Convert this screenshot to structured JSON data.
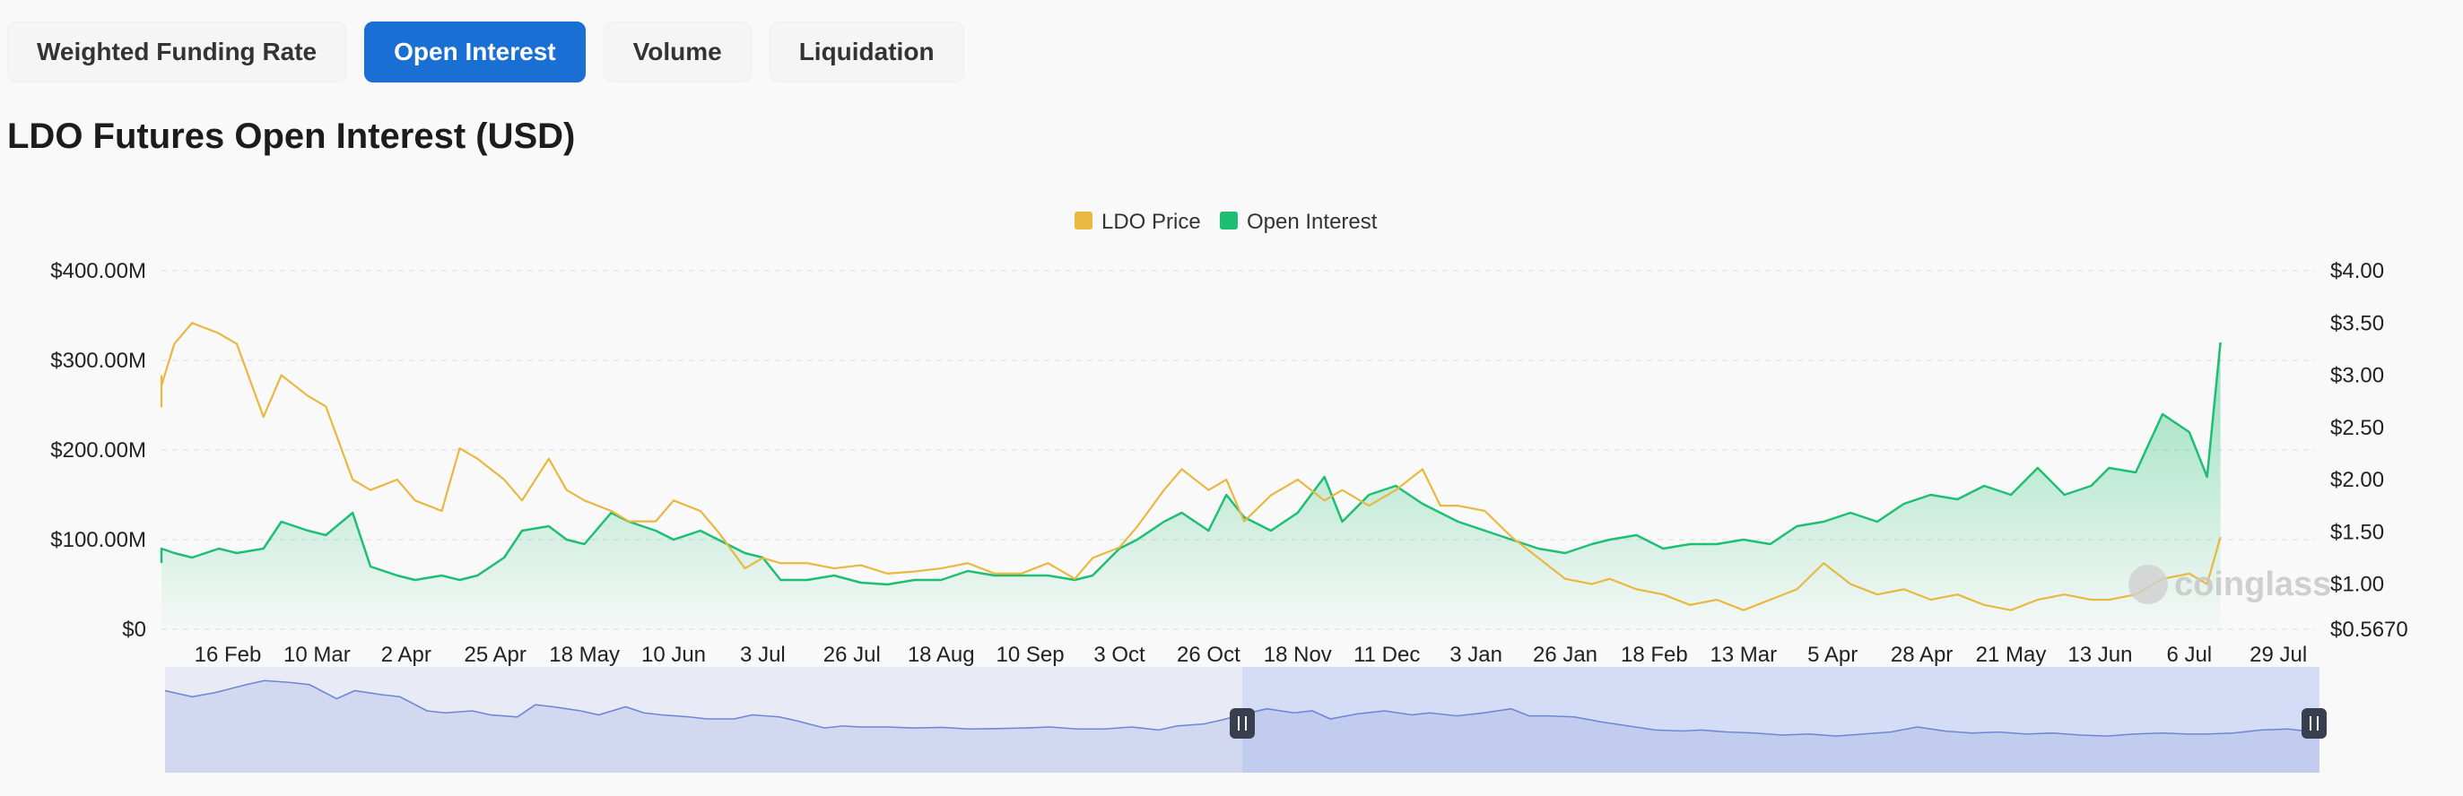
{
  "tabs": [
    {
      "label": "Weighted Funding Rate",
      "active": false
    },
    {
      "label": "Open Interest",
      "active": true
    },
    {
      "label": "Volume",
      "active": false
    },
    {
      "label": "Liquidation",
      "active": false
    }
  ],
  "colors": {
    "price": "#e9b840",
    "oi": "#1dbf73",
    "accent": "#1a6fd4",
    "navigator": "#6f86d6"
  },
  "chart_data": {
    "type": "line",
    "title": "LDO Futures Open Interest (USD)",
    "legend": {
      "position": "top-center",
      "items": [
        "LDO Price",
        "Open Interest"
      ]
    },
    "watermark": "coinglass",
    "grid": true,
    "x_ticks": [
      "16 Feb",
      "10 Mar",
      "2 Apr",
      "25 Apr",
      "18 May",
      "10 Jun",
      "3 Jul",
      "26 Jul",
      "18 Aug",
      "10 Sep",
      "3 Oct",
      "26 Oct",
      "18 Nov",
      "11 Dec",
      "3 Jan",
      "26 Jan",
      "18 Feb",
      "13 Mar",
      "5 Apr",
      "28 Apr",
      "21 May",
      "13 Jun",
      "6 Jul",
      "29 Jul"
    ],
    "y_left": {
      "ticks": [
        "$0",
        "$100.00M",
        "$200.00M",
        "$300.00M",
        "$400.00M"
      ],
      "min": 0,
      "max": 400
    },
    "y_right": {
      "ticks": [
        "$0.5670",
        "$1.00",
        "$1.50",
        "$2.00",
        "$2.50",
        "$3.00",
        "$3.50",
        "$4.00"
      ],
      "min": 0.567,
      "max": 4.0
    },
    "series": [
      {
        "name": "LDO Price",
        "axis": "right",
        "x_pos": [
          0,
          0.3,
          0.55,
          0.9,
          1.1,
          1.4,
          1.6,
          1.9,
          2.1,
          2.4,
          2.6,
          2.9,
          3.1,
          3.4,
          3.6,
          3.9,
          4.1,
          4.3,
          4.6,
          4.8,
          5.1,
          5.3,
          5.5,
          5.8,
          6.0,
          6.3,
          6.5,
          6.8,
          7.0,
          7.3,
          7.5,
          7.7,
          8.0,
          8.3,
          8.6,
          8.9,
          9.2,
          9.5,
          9.8,
          10.1,
          10.4,
          10.7,
          11.0,
          11.2,
          11.5,
          11.7,
          12.0,
          12.2,
          12.5,
          12.7,
          12.9,
          13.2,
          13.5,
          13.8,
          14.0,
          14.3,
          14.6,
          14.9,
          15.1,
          15.3,
          15.6,
          15.9,
          16.2,
          16.5,
          16.8,
          17.0,
          17.3,
          17.6,
          17.9,
          18.2,
          18.5,
          18.8,
          19.1,
          19.4,
          19.7,
          20.0,
          20.3,
          20.6,
          20.9,
          21.2,
          21.5,
          21.8,
          22.1,
          22.4,
          22.6,
          22.9,
          23.2,
          23.5,
          23.7,
          23.85
        ],
        "values": [
          3.0,
          2.7,
          2.9,
          3.3,
          3.5,
          3.4,
          3.3,
          2.6,
          3.0,
          2.8,
          2.7,
          2.0,
          1.9,
          2.0,
          1.8,
          1.7,
          2.3,
          2.2,
          2.0,
          1.8,
          2.2,
          1.9,
          1.8,
          1.7,
          1.6,
          1.6,
          1.8,
          1.7,
          1.5,
          1.15,
          1.25,
          1.2,
          1.2,
          1.15,
          1.18,
          1.1,
          1.12,
          1.15,
          1.2,
          1.1,
          1.1,
          1.2,
          1.05,
          1.25,
          1.35,
          1.55,
          1.9,
          2.1,
          1.9,
          2.0,
          1.6,
          1.85,
          2.0,
          1.8,
          1.9,
          1.75,
          1.9,
          2.1,
          1.75,
          1.75,
          1.7,
          1.45,
          1.25,
          1.05,
          1.0,
          1.05,
          0.95,
          0.9,
          0.8,
          0.85,
          0.75,
          0.85,
          0.95,
          1.2,
          1.0,
          0.9,
          0.95,
          0.85,
          0.9,
          0.8,
          0.75,
          0.85,
          0.9,
          0.85,
          0.85,
          0.9,
          1.05,
          1.1,
          1.0,
          1.45
        ]
      },
      {
        "name": "Open Interest",
        "axis": "left",
        "x_pos": [
          0,
          0.3,
          0.55,
          0.9,
          1.1,
          1.4,
          1.6,
          1.9,
          2.1,
          2.4,
          2.6,
          2.9,
          3.1,
          3.4,
          3.6,
          3.9,
          4.1,
          4.3,
          4.6,
          4.8,
          5.1,
          5.3,
          5.5,
          5.8,
          6.0,
          6.3,
          6.5,
          6.8,
          7.0,
          7.3,
          7.5,
          7.7,
          8.0,
          8.3,
          8.6,
          8.9,
          9.2,
          9.5,
          9.8,
          10.1,
          10.4,
          10.7,
          11.0,
          11.2,
          11.5,
          11.7,
          12.0,
          12.2,
          12.5,
          12.7,
          12.9,
          13.2,
          13.5,
          13.8,
          14.0,
          14.3,
          14.6,
          14.9,
          15.1,
          15.3,
          15.6,
          15.9,
          16.2,
          16.5,
          16.8,
          17.0,
          17.3,
          17.6,
          17.9,
          18.2,
          18.5,
          18.8,
          19.1,
          19.4,
          19.7,
          20.0,
          20.3,
          20.6,
          20.9,
          21.2,
          21.5,
          21.8,
          22.1,
          22.4,
          22.6,
          22.9,
          23.2,
          23.5,
          23.7,
          23.85
        ],
        "values": [
          80,
          75,
          90,
          85,
          80,
          90,
          85,
          90,
          120,
          110,
          105,
          130,
          70,
          60,
          55,
          60,
          55,
          60,
          80,
          110,
          115,
          100,
          95,
          130,
          120,
          110,
          100,
          110,
          100,
          85,
          80,
          55,
          55,
          60,
          52,
          50,
          55,
          55,
          65,
          60,
          60,
          60,
          55,
          60,
          90,
          100,
          120,
          130,
          110,
          150,
          125,
          110,
          130,
          170,
          120,
          150,
          160,
          140,
          130,
          120,
          110,
          100,
          90,
          85,
          95,
          100,
          105,
          90,
          95,
          95,
          100,
          95,
          115,
          120,
          130,
          120,
          140,
          150,
          145,
          160,
          150,
          180,
          150,
          160,
          180,
          175,
          240,
          220,
          170,
          320
        ]
      }
    ],
    "navigator": {
      "selected_from": 0.5,
      "selected_to": 1.0
    }
  }
}
